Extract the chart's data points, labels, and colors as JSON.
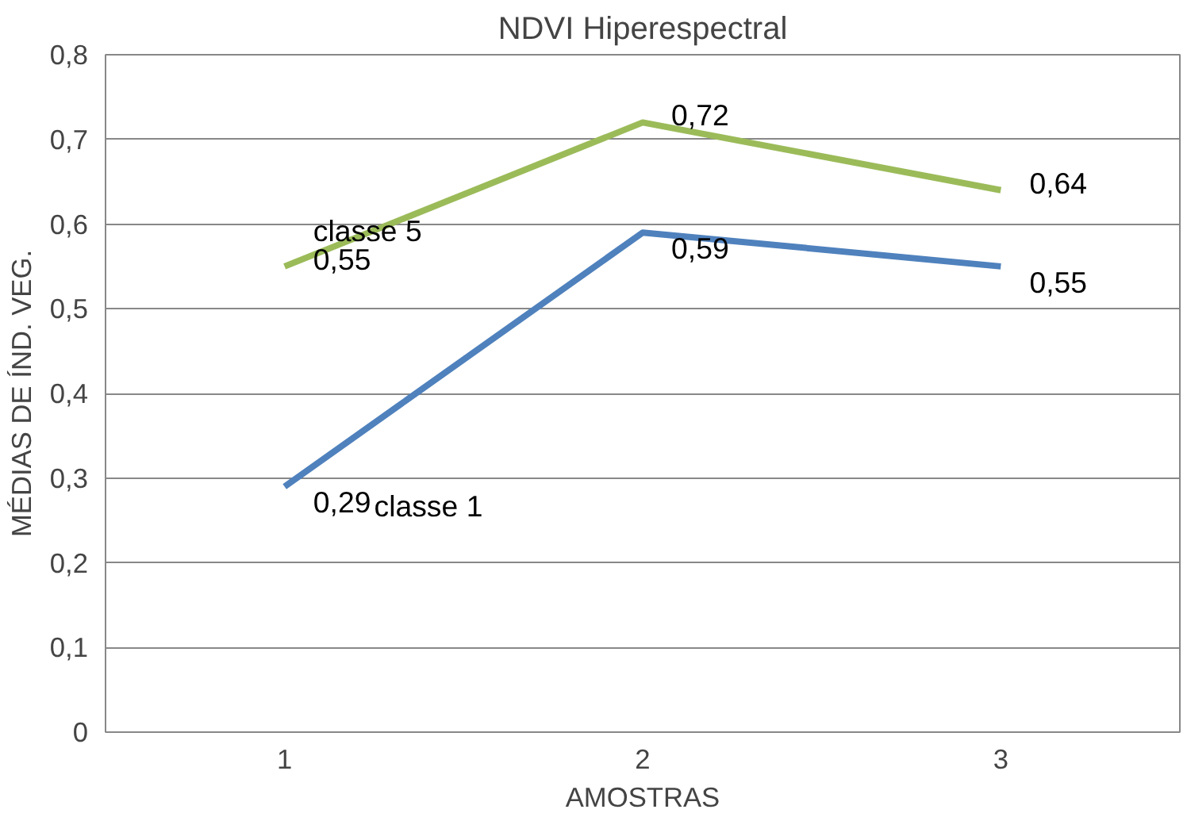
{
  "chart_data": {
    "type": "line",
    "title": "NDVI Hiperespectral",
    "xlabel": "AMOSTRAS",
    "ylabel": "MÉDIAS DE ÍND. VEG.",
    "categories": [
      "1",
      "2",
      "3"
    ],
    "series": [
      {
        "name": "classe 1",
        "color": "#4f81bd",
        "values": [
          0.29,
          0.59,
          0.55
        ],
        "value_labels": [
          "0,29",
          "0,59",
          "0,55"
        ]
      },
      {
        "name": "classe 5",
        "color": "#9bbb59",
        "values": [
          0.55,
          0.72,
          0.64
        ],
        "value_labels": [
          "0,55",
          "0,72",
          "0,64"
        ]
      }
    ],
    "ylim": [
      0,
      0.8
    ],
    "yticks": [
      0,
      {
        "value": 0.1,
        "label": "0,1"
      },
      {
        "value": 0.2,
        "label": "0,2"
      },
      {
        "value": 0.3,
        "label": "0,3"
      },
      {
        "value": 0.4,
        "label": "0,4"
      },
      {
        "value": 0.5,
        "label": "0,5"
      },
      {
        "value": 0.6,
        "label": "0,6"
      },
      {
        "value": 0.7,
        "label": "0,7"
      },
      {
        "value": 0.8,
        "label": "0,8"
      }
    ],
    "grid": "y",
    "legend": false,
    "marker": "none",
    "line_style": "solid"
  }
}
